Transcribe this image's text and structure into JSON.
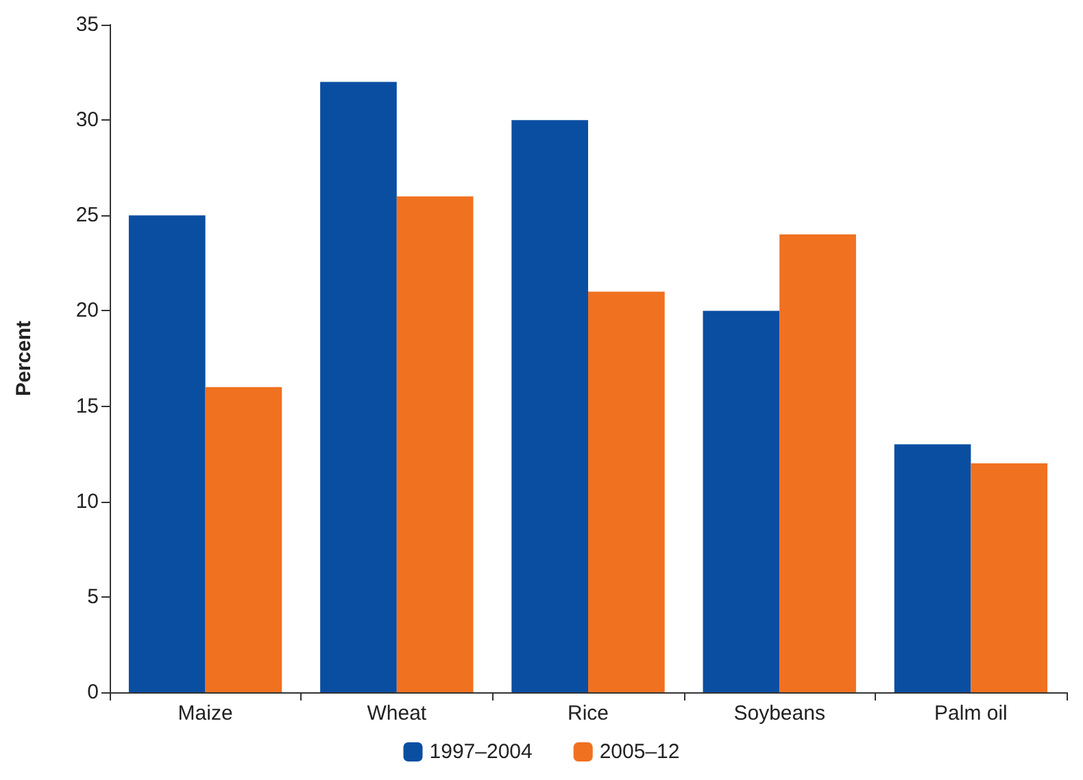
{
  "chart_data": {
    "type": "bar",
    "ylabel": "Percent",
    "categories": [
      "Maize",
      "Wheat",
      "Rice",
      "Soybeans",
      "Palm oil"
    ],
    "series": [
      {
        "name": "1997–2004",
        "color": "#0a4ea2",
        "values": [
          25,
          32,
          30,
          20,
          13
        ]
      },
      {
        "name": "2005–12",
        "color": "#f07120",
        "values": [
          16,
          26,
          21,
          24,
          12
        ]
      }
    ],
    "ylim": [
      0,
      35
    ],
    "yticks": [
      0,
      5,
      10,
      15,
      20,
      25,
      30,
      35
    ],
    "grid": false,
    "legend": "bottom"
  }
}
